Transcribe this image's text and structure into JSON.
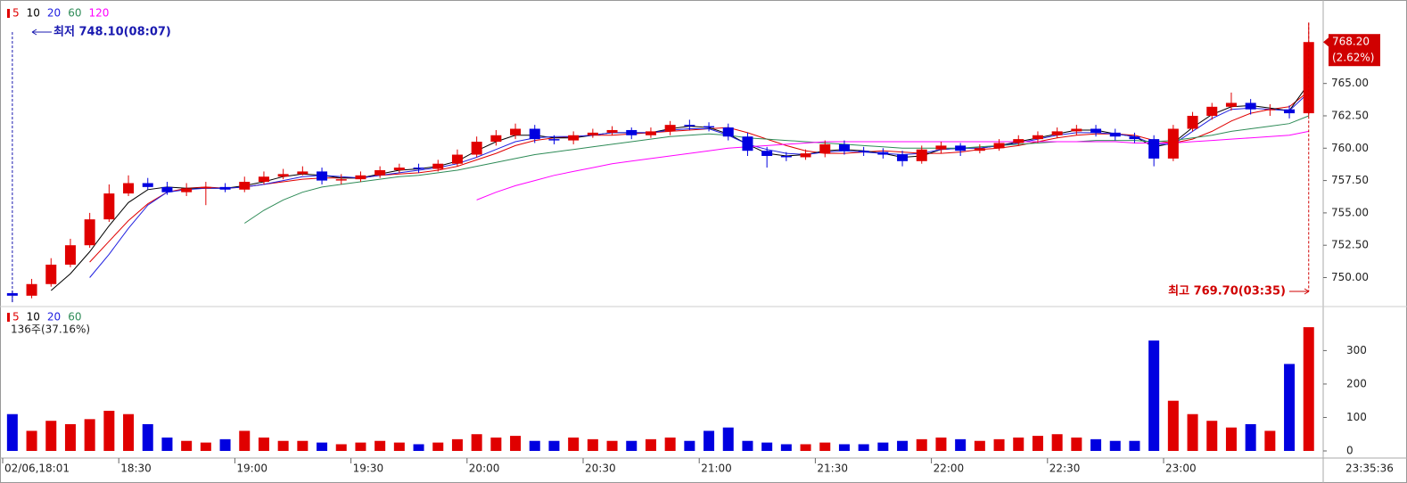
{
  "chart_data": [
    {
      "type": "candlestick",
      "categories": [
        "02/06,18:01",
        null,
        null,
        null,
        null,
        null,
        "18:30",
        null,
        null,
        null,
        null,
        null,
        "19:00",
        null,
        null,
        null,
        null,
        null,
        "19:30",
        null,
        null,
        null,
        null,
        null,
        "20:00",
        null,
        null,
        null,
        null,
        null,
        "20:30",
        null,
        null,
        null,
        null,
        null,
        "21:00",
        null,
        null,
        null,
        null,
        null,
        "21:30",
        null,
        null,
        null,
        null,
        null,
        "22:00",
        null,
        null,
        null,
        null,
        null,
        "22:30",
        null,
        null,
        null,
        null,
        null,
        "23:00",
        null,
        null,
        null,
        null,
        null,
        null,
        null
      ],
      "open": [
        748.8,
        748.6,
        749.5,
        751.0,
        752.5,
        754.5,
        756.5,
        757.3,
        757.0,
        756.6,
        756.9,
        757.0,
        756.8,
        757.4,
        757.8,
        758.0,
        758.2,
        757.5,
        757.6,
        757.9,
        758.3,
        758.5,
        758.4,
        758.8,
        759.5,
        760.5,
        761.0,
        761.5,
        760.7,
        760.6,
        761.0,
        761.2,
        761.4,
        761.0,
        761.3,
        761.8,
        761.7,
        761.6,
        760.9,
        759.8,
        759.4,
        759.3,
        759.6,
        760.3,
        759.8,
        759.7,
        759.5,
        759.0,
        759.9,
        760.2,
        759.8,
        760.0,
        760.4,
        760.7,
        761.0,
        761.3,
        761.5,
        761.2,
        760.9,
        760.7,
        759.2,
        761.5,
        762.5,
        763.2,
        763.5,
        763.0,
        763.0,
        762.7
      ],
      "high": [
        749.0,
        749.9,
        751.5,
        753.0,
        755.0,
        757.2,
        757.9,
        757.7,
        757.4,
        757.3,
        757.4,
        757.3,
        757.8,
        758.2,
        758.4,
        758.6,
        758.5,
        758.0,
        758.2,
        758.6,
        758.8,
        758.8,
        759.1,
        759.9,
        760.9,
        761.4,
        761.9,
        761.8,
        761.0,
        761.3,
        761.5,
        761.7,
        761.6,
        761.6,
        762.1,
        762.2,
        762.0,
        761.9,
        761.2,
        760.1,
        759.7,
        759.9,
        760.6,
        760.6,
        760.1,
        760.0,
        759.8,
        760.2,
        760.5,
        760.4,
        760.3,
        760.7,
        761.0,
        761.3,
        761.6,
        761.8,
        761.8,
        761.5,
        761.2,
        761.0,
        761.8,
        762.8,
        763.5,
        764.3,
        763.8,
        763.4,
        763.3,
        769.7
      ],
      "low": [
        748.1,
        748.4,
        749.3,
        750.8,
        752.3,
        754.3,
        756.3,
        756.8,
        756.4,
        756.3,
        755.6,
        756.6,
        756.6,
        757.2,
        757.6,
        757.9,
        757.2,
        757.2,
        757.4,
        757.7,
        758.1,
        758.1,
        758.2,
        758.6,
        759.3,
        760.2,
        760.7,
        760.4,
        760.3,
        760.3,
        760.8,
        761.0,
        760.7,
        760.8,
        761.0,
        761.4,
        761.3,
        760.6,
        759.4,
        758.5,
        759.0,
        759.1,
        759.3,
        759.5,
        759.4,
        759.2,
        758.6,
        758.8,
        759.6,
        759.4,
        759.6,
        759.8,
        760.2,
        760.4,
        760.8,
        761.0,
        760.9,
        760.6,
        760.4,
        758.6,
        759.0,
        761.3,
        762.2,
        762.9,
        762.6,
        762.5,
        762.3,
        762.5
      ],
      "close": [
        748.6,
        749.5,
        751.0,
        752.5,
        754.5,
        756.5,
        757.3,
        757.0,
        756.6,
        756.9,
        757.0,
        756.8,
        757.4,
        757.8,
        758.0,
        758.2,
        757.5,
        757.6,
        757.9,
        758.3,
        758.5,
        758.4,
        758.8,
        759.5,
        760.5,
        761.0,
        761.5,
        760.7,
        760.6,
        761.0,
        761.2,
        761.4,
        761.0,
        761.3,
        761.8,
        761.7,
        761.6,
        760.9,
        759.8,
        759.4,
        759.3,
        759.6,
        760.3,
        759.8,
        759.7,
        759.5,
        759.0,
        759.9,
        760.2,
        759.8,
        760.0,
        760.4,
        760.7,
        761.0,
        761.3,
        761.5,
        761.2,
        760.9,
        760.7,
        759.2,
        761.5,
        762.5,
        763.2,
        763.5,
        763.0,
        763.0,
        762.7,
        768.2
      ],
      "up_color": "#e00000",
      "down_color": "#0000e0",
      "series": [
        {
          "name": "5",
          "color": "#e00000",
          "values": [
            null,
            null,
            null,
            null,
            751.2,
            752.8,
            754.4,
            755.7,
            756.6,
            756.9,
            757.0,
            756.9,
            757.0,
            757.2,
            757.4,
            757.6,
            757.7,
            757.7,
            757.7,
            757.9,
            758.0,
            758.1,
            758.3,
            758.6,
            759.1,
            759.6,
            760.2,
            760.6,
            760.8,
            760.9,
            761.0,
            761.0,
            761.1,
            761.2,
            761.3,
            761.4,
            761.5,
            761.6,
            761.2,
            760.7,
            760.2,
            759.8,
            759.6,
            759.6,
            759.7,
            759.8,
            759.7,
            759.6,
            759.6,
            759.7,
            759.9,
            760.0,
            760.2,
            760.5,
            760.8,
            761.0,
            761.1,
            761.1,
            761.0,
            760.6,
            760.4,
            760.7,
            761.3,
            762.1,
            762.7,
            763.0,
            763.2,
            764.4
          ]
        },
        {
          "name": "10",
          "color": "#000000",
          "values": [
            null,
            null,
            749.0,
            750.3,
            752.0,
            754.0,
            755.8,
            756.8,
            757.0,
            756.9,
            756.9,
            756.9,
            757.1,
            757.4,
            757.8,
            758.0,
            757.9,
            757.7,
            757.7,
            758.0,
            758.3,
            758.4,
            758.6,
            759.0,
            759.8,
            760.5,
            761.0,
            761.0,
            760.8,
            760.8,
            761.0,
            761.2,
            761.2,
            761.2,
            761.5,
            761.7,
            761.6,
            761.1,
            760.3,
            759.6,
            759.4,
            759.5,
            759.8,
            759.9,
            759.8,
            759.6,
            759.3,
            759.4,
            759.9,
            760.0,
            760.0,
            760.2,
            760.5,
            760.8,
            761.1,
            761.4,
            761.4,
            761.1,
            760.9,
            760.1,
            760.4,
            761.6,
            762.6,
            763.2,
            763.3,
            763.1,
            762.9,
            765.0
          ]
        },
        {
          "name": "20",
          "color": "#2020e0",
          "values": [
            null,
            null,
            null,
            null,
            750.0,
            751.8,
            753.8,
            755.6,
            756.6,
            756.8,
            756.9,
            756.9,
            757.0,
            757.2,
            757.5,
            757.8,
            757.9,
            757.8,
            757.7,
            757.9,
            758.1,
            758.3,
            758.5,
            758.8,
            759.3,
            759.9,
            760.5,
            760.8,
            760.9,
            760.9,
            761.0,
            761.2,
            761.2,
            761.2,
            761.4,
            761.5,
            761.5,
            761.0,
            760.3,
            759.9,
            759.6,
            759.5,
            759.7,
            759.8,
            759.7,
            759.6,
            759.5,
            759.6,
            759.9,
            760.0,
            760.0,
            760.2,
            760.4,
            760.7,
            761.0,
            761.2,
            761.2,
            761.1,
            760.9,
            760.3,
            760.3,
            761.3,
            762.3,
            763.0,
            763.1,
            763.0,
            762.9,
            764.3
          ]
        },
        {
          "name": "60",
          "color": "#2e8b57",
          "values": [
            null,
            null,
            null,
            null,
            null,
            null,
            null,
            null,
            null,
            null,
            null,
            null,
            754.2,
            755.2,
            756.0,
            756.6,
            757.0,
            757.2,
            757.4,
            757.6,
            757.8,
            757.9,
            758.1,
            758.3,
            758.6,
            758.9,
            759.2,
            759.5,
            759.7,
            759.9,
            760.1,
            760.3,
            760.5,
            760.7,
            760.9,
            761.0,
            761.1,
            761.0,
            760.8,
            760.7,
            760.6,
            760.5,
            760.4,
            760.3,
            760.2,
            760.1,
            760.0,
            760.0,
            760.0,
            760.0,
            760.1,
            760.2,
            760.3,
            760.4,
            760.5,
            760.5,
            760.6,
            760.6,
            760.6,
            760.5,
            760.6,
            760.8,
            761.0,
            761.3,
            761.5,
            761.7,
            761.9,
            762.5
          ]
        },
        {
          "name": "120",
          "color": "#ff00ff",
          "values": [
            null,
            null,
            null,
            null,
            null,
            null,
            null,
            null,
            null,
            null,
            null,
            null,
            null,
            null,
            null,
            null,
            null,
            null,
            null,
            null,
            null,
            null,
            null,
            null,
            756.0,
            756.6,
            757.1,
            757.5,
            757.9,
            758.2,
            758.5,
            758.8,
            759.0,
            759.2,
            759.4,
            759.6,
            759.8,
            760.0,
            760.1,
            760.2,
            760.3,
            760.4,
            760.5,
            760.5,
            760.5,
            760.5,
            760.5,
            760.5,
            760.5,
            760.5,
            760.5,
            760.5,
            760.5,
            760.5,
            760.5,
            760.5,
            760.5,
            760.5,
            760.4,
            760.4,
            760.4,
            760.5,
            760.6,
            760.7,
            760.8,
            760.9,
            761.0,
            761.3
          ]
        }
      ],
      "ylim": [
        747.9,
        770.9
      ],
      "yticks": [
        {
          "value": 750,
          "label": "750.00"
        },
        {
          "value": 752.5,
          "label": "752.50"
        },
        {
          "value": 755,
          "label": "755.00"
        },
        {
          "value": 757.5,
          "label": "757.50"
        },
        {
          "value": 760,
          "label": "760.00"
        },
        {
          "value": 762.5,
          "label": "762.50"
        },
        {
          "value": 765,
          "label": "765.00"
        }
      ],
      "current_price": {
        "value": 768.2,
        "label": "768.20"
      },
      "change_label": "(2.62%)",
      "low_label": "최저 748.10(08:07)",
      "high_label": "최고 769.70(03:35)",
      "clock": "23:35:36"
    },
    {
      "type": "bar",
      "legend": [
        {
          "name": "5",
          "color": "#e00000"
        },
        {
          "name": "10",
          "color": "#000000"
        },
        {
          "name": "20",
          "color": "#2020e0"
        },
        {
          "name": "60",
          "color": "#2e8b57"
        }
      ],
      "info": "136주(37.16%)",
      "values": [
        110,
        60,
        90,
        80,
        95,
        120,
        110,
        80,
        40,
        30,
        25,
        35,
        60,
        40,
        30,
        30,
        25,
        20,
        25,
        30,
        25,
        20,
        25,
        35,
        50,
        40,
        45,
        30,
        30,
        40,
        35,
        30,
        30,
        35,
        40,
        30,
        60,
        70,
        30,
        25,
        20,
        20,
        25,
        20,
        20,
        25,
        30,
        35,
        40,
        35,
        30,
        35,
        40,
        45,
        50,
        40,
        35,
        30,
        30,
        330,
        150,
        110,
        90,
        70,
        80,
        60,
        260,
        370
      ],
      "ylim": [
        -16,
        421
      ],
      "yticks": [
        0,
        100,
        200,
        300
      ]
    }
  ]
}
